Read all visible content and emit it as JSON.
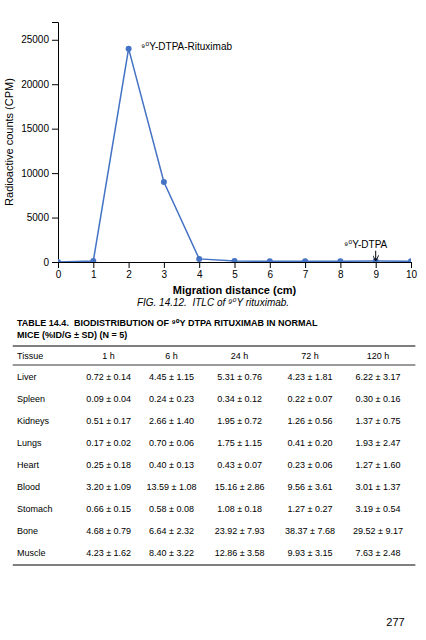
{
  "chart_data": {
    "type": "line",
    "title": "FIG. 14.12.  ITLC of ⁹⁰Y rituximab.",
    "x_label": "Migration distance (cm)",
    "y_label": "Radioactive counts (CPM)",
    "x": [
      0,
      1,
      2,
      3,
      4,
      5,
      6,
      7,
      8,
      9,
      10
    ],
    "values": [
      0,
      100,
      24000,
      9000,
      350,
      100,
      80,
      80,
      80,
      100,
      80
    ],
    "color": "#4472C4",
    "marker": "o",
    "xlim": [
      0,
      10
    ],
    "ylim": [
      0,
      27000
    ],
    "xticks": [
      0,
      1,
      2,
      3,
      4,
      5,
      6,
      7,
      8,
      9,
      10
    ],
    "yticks": [
      0,
      5000,
      10000,
      15000,
      20000,
      25000
    ],
    "grid": false,
    "annotations": [
      {
        "text": "⁹⁰Y-DTPA-Rituximab",
        "x": 2.35,
        "y": 23500
      },
      {
        "text": "⁹⁰Y-DTPA",
        "x": 8.1,
        "y": 1600,
        "arrow_x": 9.0,
        "arrow_y": 150
      }
    ]
  },
  "table": {
    "title_line1": "TABLE 14.4.  BIODISTRIBUTION OF ⁹⁰Y DTPA RITUXIMAB IN NORMAL",
    "title_line2": "MICE (%ID/G ± SD) (N = 5)",
    "columns": [
      "Tissue",
      "1 h",
      "6 h",
      "24 h",
      "72 h",
      "120 h"
    ],
    "rows": [
      [
        "Liver",
        "0.72 ± 0.14",
        "4.45 ± 1.15",
        "5.31 ± 0.76",
        "4.23 ± 1.81",
        "6.22 ± 3.17"
      ],
      [
        "Spleen",
        "0.09 ± 0.04",
        "0.24 ± 0.23",
        "0.34 ± 0.12",
        "0.22 ± 0.07",
        "0.30 ± 0.16"
      ],
      [
        "Kidneys",
        "0.51 ± 0.17",
        "2.66 ± 1.40",
        "1.95 ± 0.72",
        "1.26 ± 0.56",
        "1.37 ± 0.75"
      ],
      [
        "Lungs",
        "0.17 ± 0.02",
        "0.70 ± 0.06",
        "1.75 ± 1.15",
        "0.41 ± 0.20",
        "1.93 ± 2.47"
      ],
      [
        "Heart",
        "0.25 ± 0.18",
        "0.40 ± 0.13",
        "0.43 ± 0.07",
        "0.23 ± 0.06",
        "1.27 ± 1.60"
      ],
      [
        "Blood",
        "3.20 ± 1.09",
        "13.59 ± 1.08",
        "15.16 ± 2.86",
        "9.56 ± 3.61",
        "3.01 ± 1.37"
      ],
      [
        "Stomach",
        "0.66 ± 0.15",
        "0.58 ± 0.08",
        "1.08 ± 0.18",
        "1.27 ± 0.27",
        "3.19 ± 0.54"
      ],
      [
        "Bone",
        "4.68 ± 0.79",
        "6.64 ± 2.32",
        "23.92 ± 7.93",
        "38.37 ± 7.68",
        "29.52 ± 9.17"
      ],
      [
        "Muscle",
        "4.23 ± 1.62",
        "8.40 ± 3.22",
        "12.86 ± 3.58",
        "9.93 ± 3.15",
        "7.63 ± 2.48"
      ]
    ],
    "page_number": "277"
  }
}
